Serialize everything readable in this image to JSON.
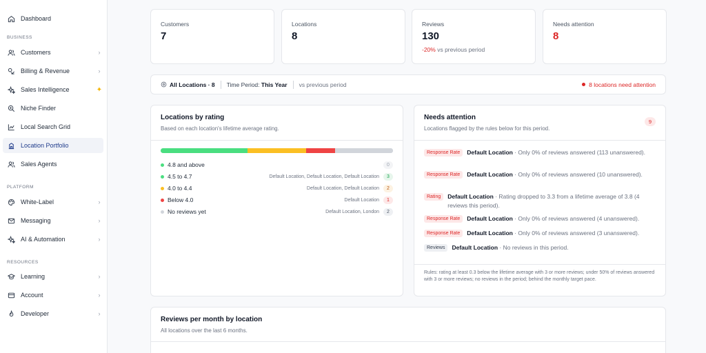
{
  "sidebar": {
    "dashboard": "Dashboard",
    "section_business": "BUSINESS",
    "customers": "Customers",
    "billing": "Billing & Revenue",
    "sales_intelligence": "Sales Intelligence",
    "niche_finder": "Niche Finder",
    "local_search_grid": "Local Search Grid",
    "location_portfolio": "Location Portfolio",
    "sales_agents": "Sales Agents",
    "section_platform": "PLATFORM",
    "white_label": "White-Label",
    "messaging": "Messaging",
    "ai_automation": "AI & Automation",
    "section_resources": "RESOURCES",
    "learning": "Learning",
    "account": "Account",
    "developer": "Developer"
  },
  "stats": {
    "customers_label": "Customers",
    "customers_value": "7",
    "locations_label": "Locations",
    "locations_value": "8",
    "reviews_label": "Reviews",
    "reviews_value": "130",
    "reviews_change": "-20%",
    "reviews_change_suffix": "vs previous period",
    "attention_label": "Needs attention",
    "attention_value": "8"
  },
  "filter": {
    "locations": "All Locations · 8",
    "period_label": "Time Period:",
    "period_value": "This Year",
    "compare": "vs previous period",
    "alert": "8 locations need attention"
  },
  "ratings": {
    "title": "Locations by rating",
    "subtitle": "Based on each location's lifetime average rating.",
    "bar": {
      "green": 0.375,
      "orange": 0.25,
      "red": 0.125,
      "grey": 0.25
    },
    "rows": [
      {
        "label": "4.8 and above",
        "locations": "",
        "count": "0"
      },
      {
        "label": "4.5 to 4.7",
        "locations": "Default Location, Default Location, Default Location",
        "count": "3"
      },
      {
        "label": "4.0 to 4.4",
        "locations": "Default Location, Default Location",
        "count": "2"
      },
      {
        "label": "Below 4.0",
        "locations": "Default Location",
        "count": "1"
      },
      {
        "label": "No reviews yet",
        "locations": "Default Location, London",
        "count": "2"
      }
    ]
  },
  "attention": {
    "title": "Needs attention",
    "subtitle": "Locations flagged by the rules below for this period.",
    "count": "9",
    "items": [
      {
        "tag": "Response Rate",
        "name": "Default Location",
        "detail": "· Only 0% of reviews answered (113 unanswered)."
      },
      {
        "tag": "Response Rate",
        "name": "Default Location",
        "detail": "· Only 0% of reviews answered (10 unanswered)."
      },
      {
        "tag": "Rating",
        "name": "Default Location",
        "detail": "· Rating dropped to 3.3 from a lifetime average of 3.8 (4 reviews this period)."
      },
      {
        "tag": "Response Rate",
        "name": "Default Location",
        "detail": "· Only 0% of reviews answered (4 unanswered)."
      },
      {
        "tag": "Response Rate",
        "name": "Default Location",
        "detail": "· Only 0% of reviews answered (3 unanswered)."
      },
      {
        "tag": "Reviews",
        "name": "Default Location",
        "detail": "· No reviews in this period."
      }
    ],
    "rules": "Rules: rating at least 0.3 below the lifetime average with 3 or more reviews; under 50% of reviews answered with 3 or more reviews; no reviews in the period; behind the monthly target pace."
  },
  "monthly": {
    "title": "Reviews per month by location",
    "subtitle": "All locations over the last 6 months."
  },
  "colors": {
    "green": "#4ade80",
    "orange": "#fbbf24",
    "red": "#ef4444",
    "grey": "#d1d5db"
  }
}
